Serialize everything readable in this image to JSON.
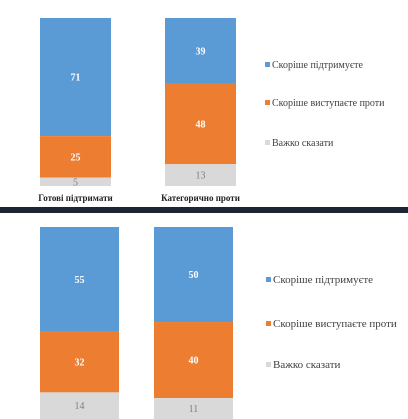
{
  "colors": {
    "support": "#5b9bd5",
    "oppose": "#ed7d31",
    "unsure": "#d9d9d9"
  },
  "chart_data": [
    {
      "type": "bar",
      "stacked": true,
      "title": "",
      "categories": [
        "Готові підтримати",
        "Категорично проти"
      ],
      "series": [
        {
          "name": "Скоріше підтримуєте",
          "color_key": "support",
          "values": [
            71,
            39
          ]
        },
        {
          "name": "Скоріше виступаєте проти",
          "color_key": "oppose",
          "values": [
            25,
            48
          ]
        },
        {
          "name": "Важко сказати",
          "color_key": "unsure",
          "values": [
            5,
            13
          ]
        }
      ],
      "legend": "right"
    },
    {
      "type": "bar",
      "stacked": true,
      "title": "",
      "categories": [
        "",
        ""
      ],
      "series": [
        {
          "name": "Скоріше підтримуєте",
          "color_key": "support",
          "values": [
            55,
            50
          ]
        },
        {
          "name": "Скоріше виступаєте проти",
          "color_key": "oppose",
          "values": [
            32,
            40
          ]
        },
        {
          "name": "Важко сказати",
          "color_key": "unsure",
          "values": [
            14,
            11
          ]
        }
      ],
      "legend": "right"
    }
  ]
}
